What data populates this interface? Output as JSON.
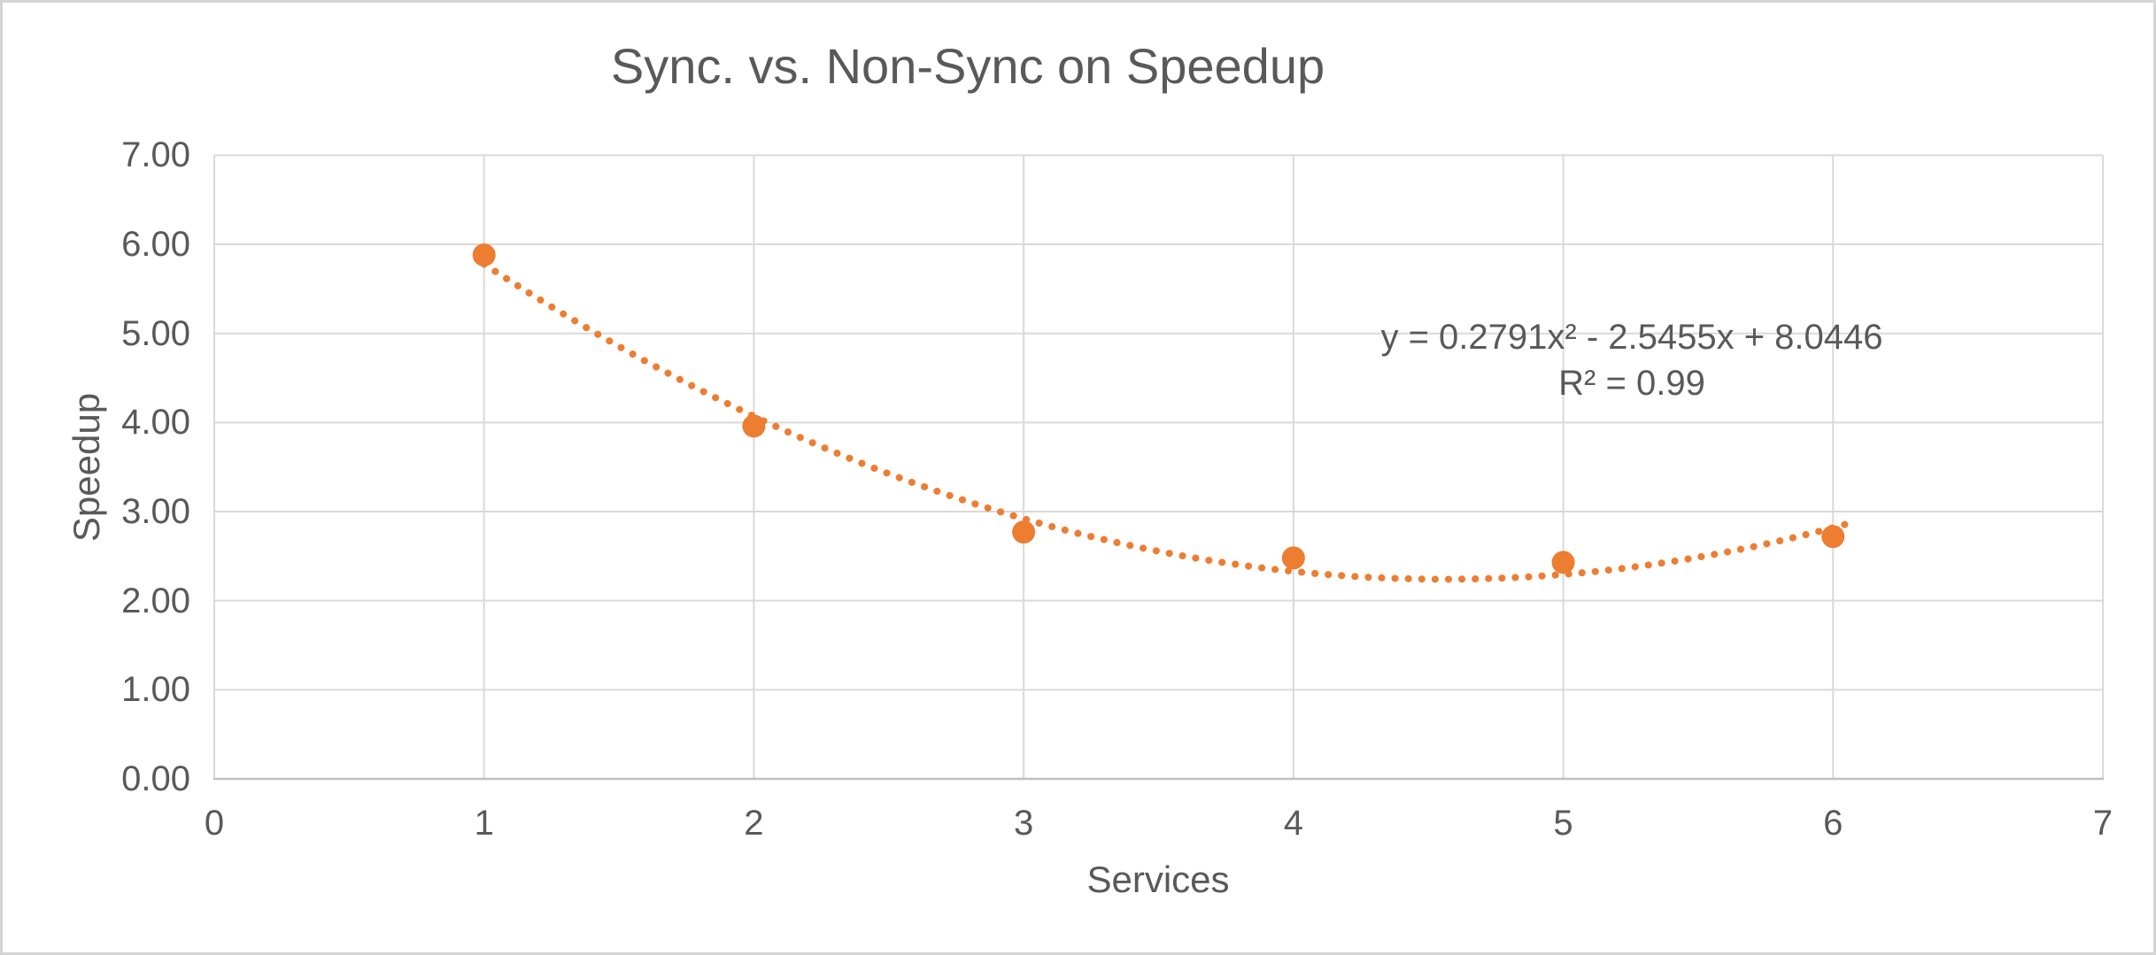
{
  "chart_data": {
    "type": "scatter",
    "title": "Sync. vs. Non-Sync on Speedup",
    "xlabel": "Services",
    "ylabel": "Speedup",
    "xlim": [
      0,
      7
    ],
    "ylim": [
      0,
      7
    ],
    "x_ticks": [
      "0",
      "1",
      "2",
      "3",
      "4",
      "5",
      "6",
      "7"
    ],
    "y_ticks": [
      "0.00",
      "1.00",
      "2.00",
      "3.00",
      "4.00",
      "5.00",
      "6.00",
      "7.00"
    ],
    "grid": true,
    "legend": "none",
    "series": [
      {
        "name": "Speedup",
        "x": [
          1,
          2,
          3,
          4,
          5,
          6
        ],
        "y": [
          5.88,
          3.96,
          2.77,
          2.48,
          2.43,
          2.72
        ],
        "marker": "circle",
        "marker_color": "#ED7D31"
      }
    ],
    "trendline": {
      "type": "polynomial",
      "order": 2,
      "coefficients": {
        "a": 0.2791,
        "b": -2.5455,
        "c": 8.0446
      },
      "x_range": [
        1,
        6.05
      ],
      "style": "dotted",
      "color": "#ED7D31",
      "equation_label": "y = 0.2791x² - 2.5455x + 8.0446",
      "r_squared_label": "R² = 0.99"
    },
    "colors": {
      "text": "#595959",
      "gridline": "#d9d9d9",
      "axis_line": "#bfbfbf",
      "accent": "#ED7D31",
      "frame": "#d5d5d5"
    }
  }
}
